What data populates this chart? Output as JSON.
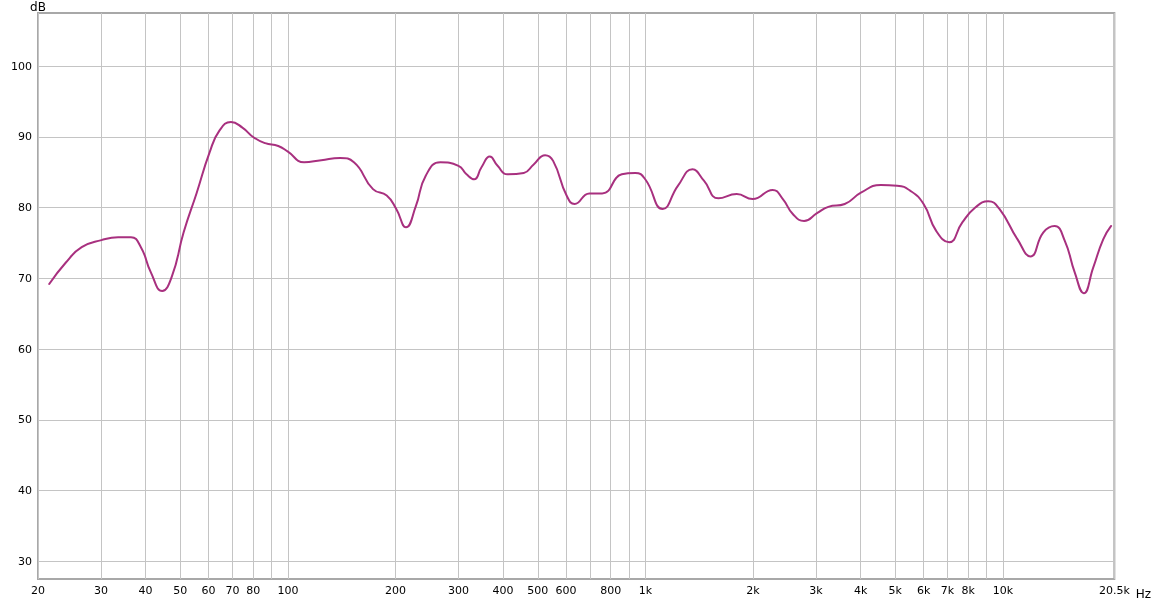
{
  "chart_data": {
    "type": "line",
    "xlabel": "Hz",
    "ylabel": "dB",
    "log": "x",
    "grid": true,
    "marker": "none",
    "line_style": "solid",
    "xlim": [
      20,
      20500
    ],
    "ylim": [
      27.5,
      107.5
    ],
    "xticks": [
      20,
      30,
      40,
      50,
      60,
      70,
      80,
      {
        "value": 90,
        "label": null
      },
      100,
      200,
      300,
      400,
      500,
      600,
      {
        "value": 700,
        "label": null
      },
      800,
      {
        "value": 900,
        "label": null
      },
      {
        "value": 1000,
        "label": "1k"
      },
      {
        "value": 2000,
        "label": "2k"
      },
      {
        "value": 3000,
        "label": "3k"
      },
      {
        "value": 4000,
        "label": "4k"
      },
      {
        "value": 5000,
        "label": "5k"
      },
      {
        "value": 6000,
        "label": "6k"
      },
      {
        "value": 7000,
        "label": "7k"
      },
      {
        "value": 8000,
        "label": "8k"
      },
      {
        "value": 9000,
        "label": null
      },
      {
        "value": 10000,
        "label": "10k"
      },
      {
        "value": 20500,
        "label": "20.5k"
      }
    ],
    "yticks": [
      30,
      40,
      50,
      60,
      70,
      80,
      90,
      100
    ],
    "series": [
      {
        "color": "#a8307f",
        "x": [
          21.5,
          23.9,
          26.5,
          30.1,
          33.5,
          36.4,
          38.8,
          41.4,
          44.5,
          47.4,
          51.1,
          55.6,
          60.4,
          64.4,
          69.3,
          74.6,
          80.3,
          86.4,
          94,
          100,
          111,
          124,
          140,
          153,
          173,
          189,
          201,
          214,
          228,
          243,
          267,
          300,
          316,
          332,
          348,
          367,
          386,
          411,
          457,
          487,
          524,
          552,
          602,
          634,
          697,
          757,
          859,
          937,
          999,
          1118,
          1234,
          1354,
          1458,
          1601,
          1801,
          1995,
          2269,
          2424,
          2584,
          2779,
          3020,
          3248,
          3611,
          4007,
          4557,
          5060,
          5500,
          6000,
          6507,
          7074,
          7700,
          8370,
          9098,
          9780,
          10990,
          11940,
          12980,
          13950,
          14900,
          15890,
          16840,
          17890,
          19080,
          20080
        ],
        "values": [
          69.2,
          72.2,
          74.4,
          75.4,
          75.8,
          75.8,
          74.4,
          70.8,
          68.2,
          70.3,
          76.5,
          82.1,
          87.8,
          90.9,
          92.1,
          91.3,
          89.9,
          89.1,
          88.7,
          87.9,
          86.4,
          86.7,
          87,
          86.4,
          82.6,
          81.7,
          79.8,
          77.2,
          80.2,
          84.5,
          86.4,
          85.9,
          84.7,
          84,
          85.7,
          87.2,
          85.9,
          84.7,
          84.9,
          86.1,
          87.4,
          86.6,
          81.7,
          80.5,
          82,
          82,
          84.7,
          84.9,
          84,
          79.8,
          83.1,
          85.4,
          83.8,
          81.3,
          81.9,
          81.2,
          82.5,
          81.2,
          79.1,
          78.1,
          79.2,
          80.1,
          80.5,
          82.1,
          83.2,
          83.1,
          82.4,
          80.5,
          76.7,
          75.1,
          77.9,
          80,
          80.9,
          79.8,
          75.5,
          73.1,
          76.5,
          77.4,
          75.3,
          70.8,
          67.9,
          71.5,
          75.5,
          77.4
        ]
      }
    ]
  }
}
